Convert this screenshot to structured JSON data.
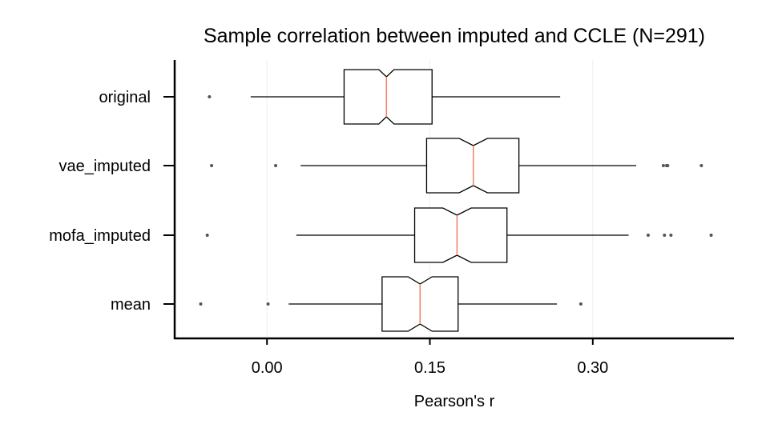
{
  "chart_data": {
    "type": "boxplot",
    "orientation": "horizontal",
    "notched": true,
    "title": "Sample correlation between imputed and CCLE (N=291)",
    "xlabel": "Pearson's r",
    "ylabel": "",
    "xlim": [
      -0.085,
      0.43
    ],
    "xticks": [
      0.0,
      0.15,
      0.3
    ],
    "xtick_labels": [
      "0.00",
      "0.15",
      "0.30"
    ],
    "grid": false,
    "colors": {
      "box": "#000000",
      "median": "#f08060",
      "outlier": "#555555",
      "grid": "#f0f0f0"
    },
    "categories": [
      "original",
      "vae_imputed",
      "mofa_imputed",
      "mean"
    ],
    "series": [
      {
        "label": "original",
        "whisker_low": -0.015,
        "q1": 0.071,
        "median": 0.11,
        "q3": 0.152,
        "whisker_high": 0.27,
        "notch_low": 0.103,
        "notch_high": 0.117,
        "outliers": [
          -0.053
        ]
      },
      {
        "label": "vae_imputed",
        "whisker_low": 0.031,
        "q1": 0.147,
        "median": 0.19,
        "q3": 0.232,
        "whisker_high": 0.34,
        "notch_low": 0.177,
        "notch_high": 0.203,
        "outliers": [
          -0.051,
          0.008,
          0.365,
          0.368,
          0.369,
          0.4
        ]
      },
      {
        "label": "mofa_imputed",
        "whisker_low": 0.027,
        "q1": 0.136,
        "median": 0.175,
        "q3": 0.221,
        "whisker_high": 0.333,
        "notch_low": 0.162,
        "notch_high": 0.188,
        "outliers": [
          -0.055,
          0.351,
          0.366,
          0.372,
          0.409
        ]
      },
      {
        "label": "mean",
        "whisker_low": 0.02,
        "q1": 0.106,
        "median": 0.141,
        "q3": 0.176,
        "whisker_high": 0.267,
        "notch_low": 0.13,
        "notch_high": 0.152,
        "outliers": [
          -0.061,
          0.001,
          0.289
        ]
      }
    ]
  }
}
